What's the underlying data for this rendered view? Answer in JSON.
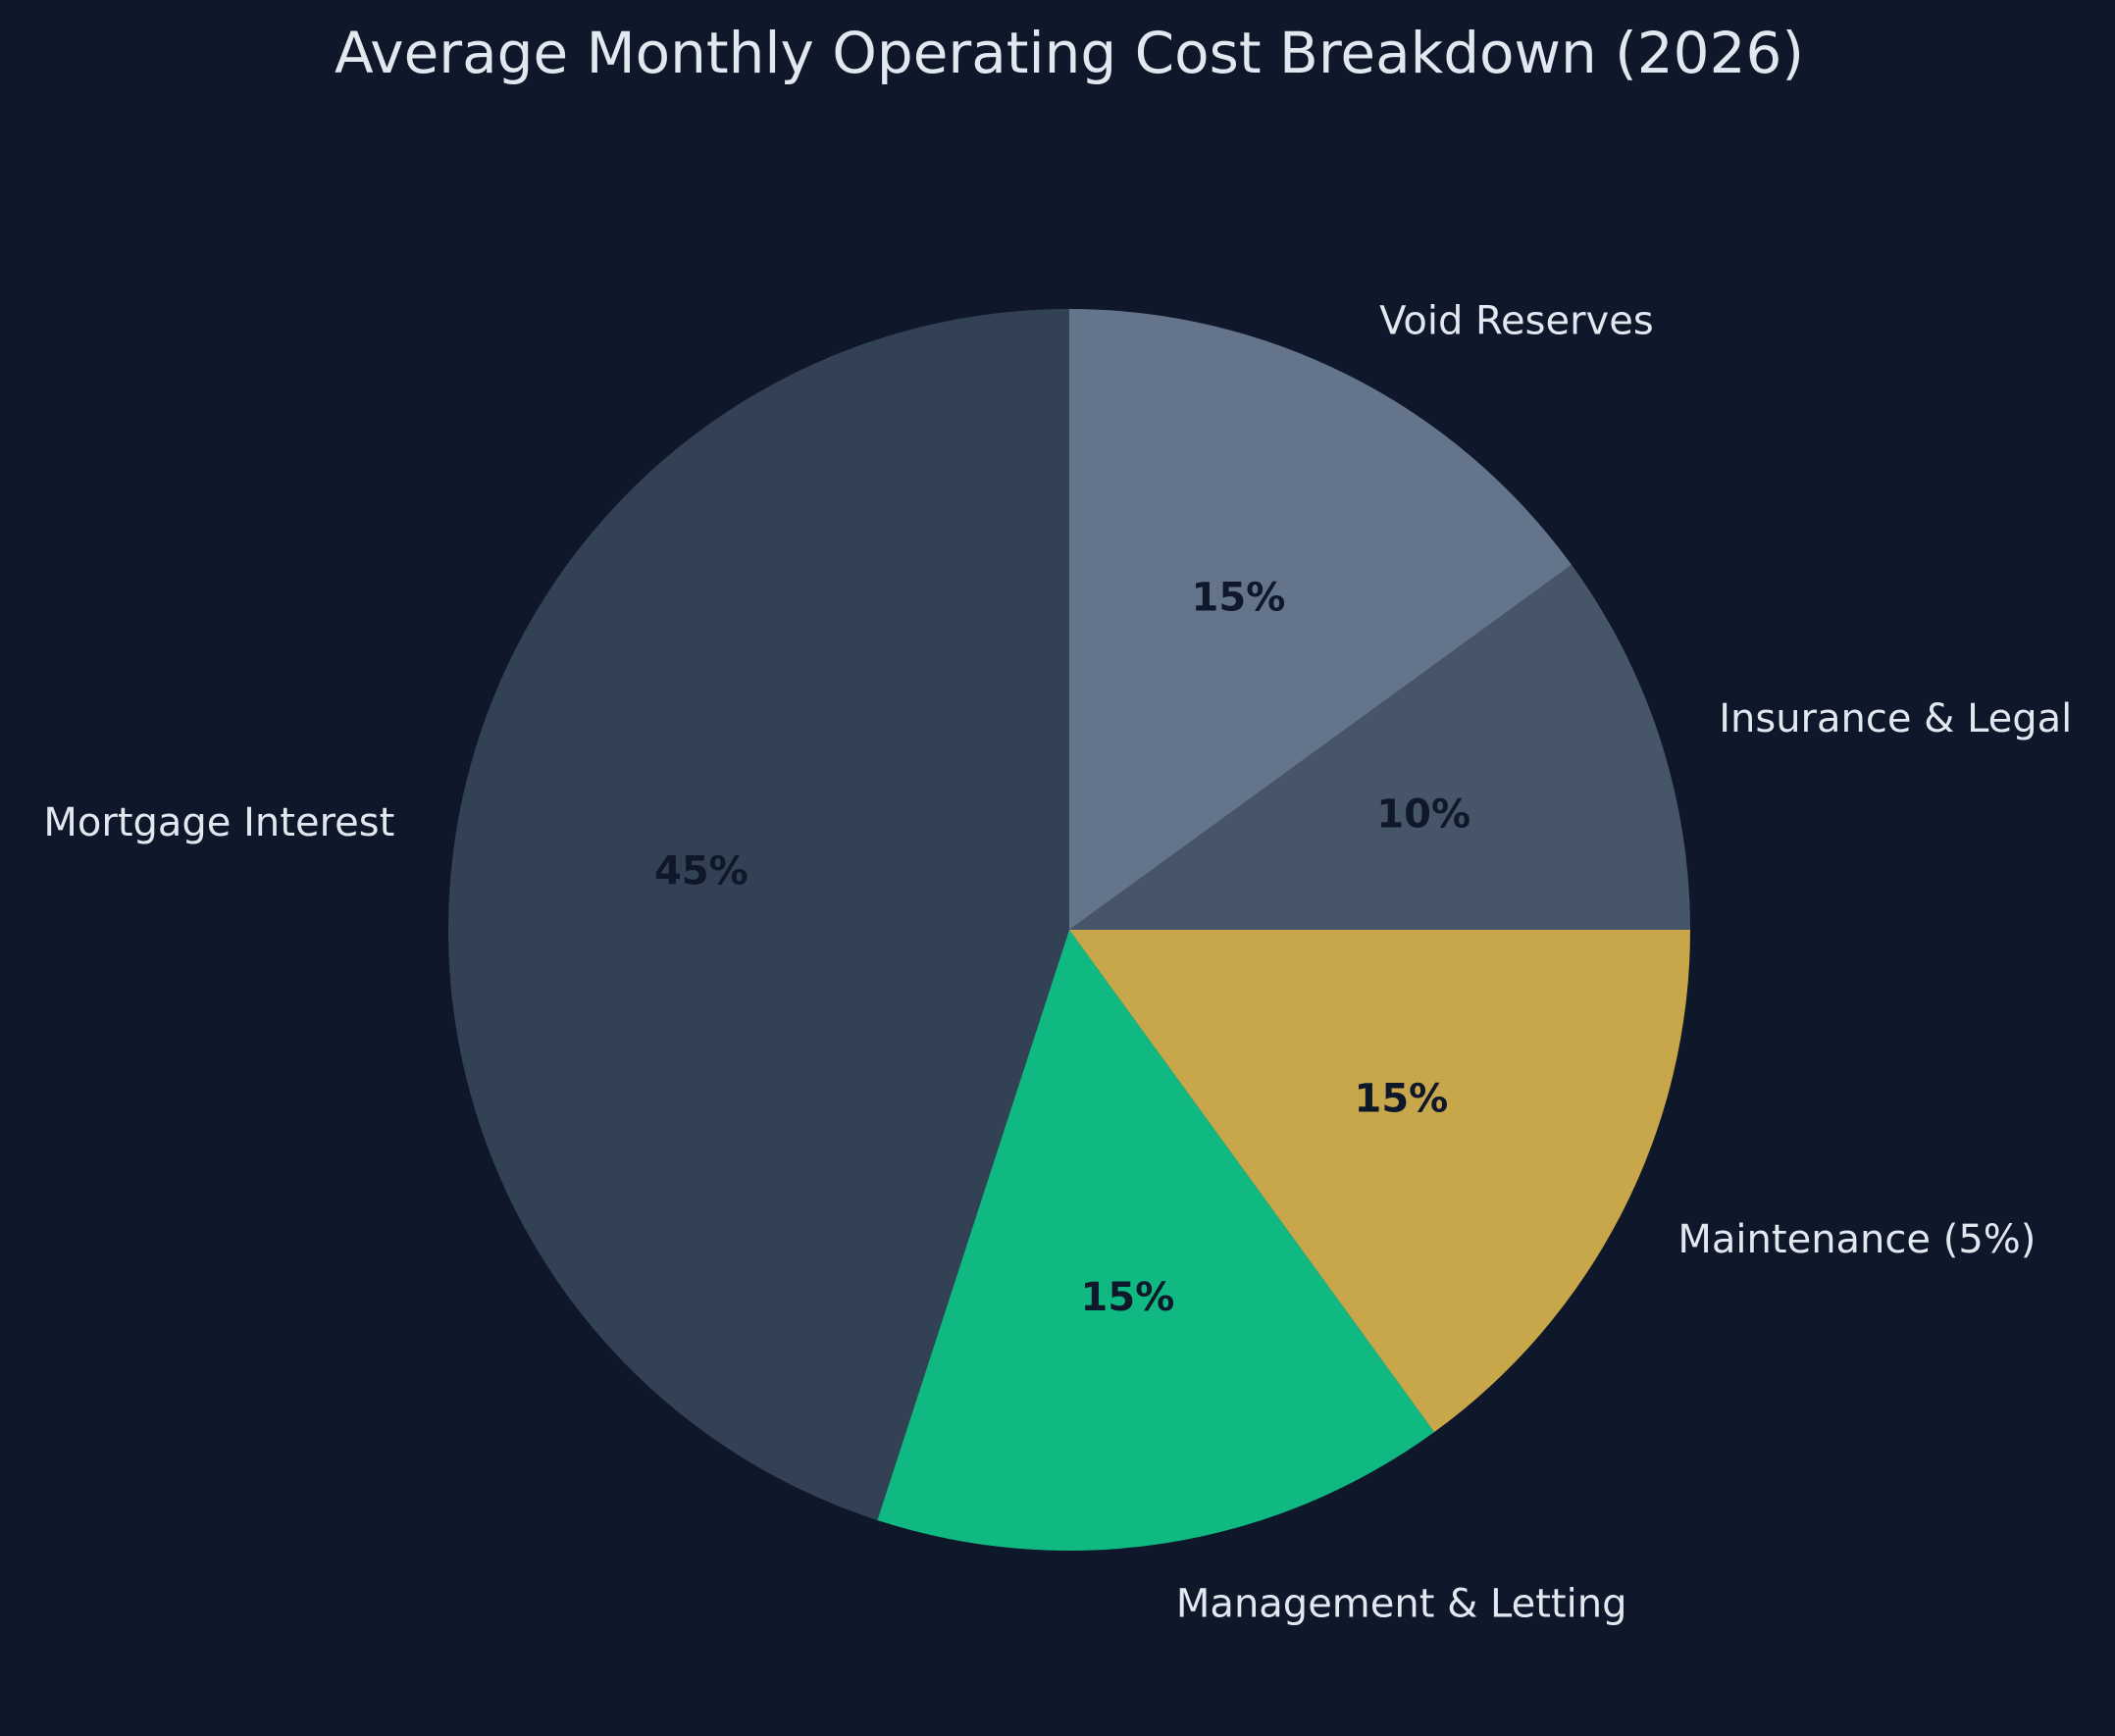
{
  "chart_data": {
    "type": "pie",
    "title": "Average Monthly Operating Cost Breakdown (2026)",
    "start_angle_deg": 90,
    "direction": "counterclockwise",
    "legend": "none",
    "slices": [
      {
        "label": "Mortgage Interest",
        "value": 45,
        "pct_label": "45%",
        "color": "#334155"
      },
      {
        "label": "Management & Letting",
        "value": 15,
        "pct_label": "15%",
        "color": "#10b981"
      },
      {
        "label": "Maintenance (5%)",
        "value": 15,
        "pct_label": "15%",
        "color": "#c8a64a"
      },
      {
        "label": "Insurance & Legal",
        "value": 10,
        "pct_label": "10%",
        "color": "#475569"
      },
      {
        "label": "Void Reserves",
        "value": 15,
        "pct_label": "15%",
        "color": "#64748b"
      }
    ]
  },
  "colors": {
    "background": "#0f172a",
    "text": "#e2e8f0",
    "pct_text": "#0f172a"
  }
}
